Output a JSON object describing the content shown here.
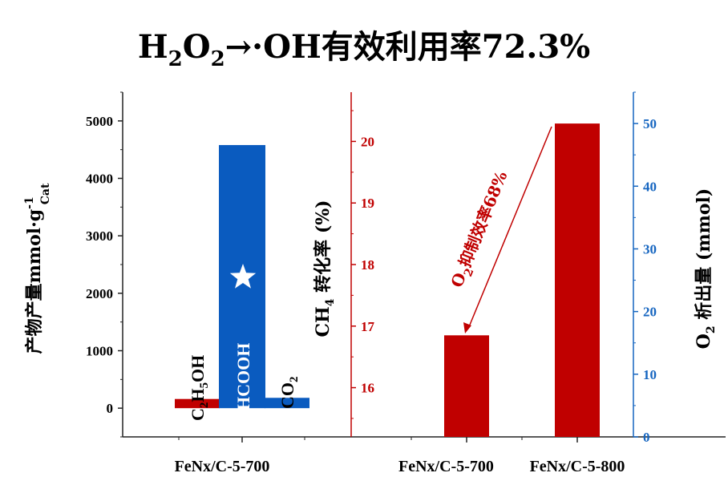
{
  "title": {
    "prefix": "H",
    "sub1": "2",
    "mid": "O",
    "sub2": "2",
    "suffix": "→·OH有效利用率72.3%",
    "color": "#1565c0"
  },
  "colors": {
    "blue": "#0a5bbf",
    "red": "#c00000",
    "axis_left": "#222222",
    "axis_mid": "#c00000",
    "axis_right": "#1565c0"
  },
  "chart_data": [
    {
      "type": "bar",
      "categories": [
        "FeNx/C-5-700"
      ],
      "series": [
        {
          "name": "C2H5OH",
          "label_parts": [
            "C",
            "2",
            "H",
            "5",
            "OH"
          ],
          "values": [
            160
          ]
        },
        {
          "name": "HCOOH",
          "label_parts": [
            "HCOOH"
          ],
          "values": [
            4580
          ]
        },
        {
          "name": "CO2",
          "label_parts": [
            "CO",
            "2"
          ],
          "values": [
            180
          ]
        }
      ],
      "ylabel_parts": [
        "产物产量mmol·g",
        "-1",
        "Cat"
      ],
      "yticks": [
        0,
        1000,
        2000,
        3000,
        4000,
        5000
      ],
      "ylim": [
        -500,
        5500
      ],
      "star_on": "HCOOH"
    },
    {
      "type": "bar",
      "categories": [
        "FeNx/C-5-700",
        "FeNx/C-5-800"
      ],
      "series": [
        {
          "name": "CH4 转化率",
          "axis": "left",
          "values": [
            16.85,
            null
          ]
        },
        {
          "name": "O2 析出量",
          "axis": "right",
          "values": [
            null,
            50
          ]
        }
      ],
      "ylabel_left_parts": [
        "CH",
        "4",
        " 转化率 (%)"
      ],
      "yticks_left": [
        16,
        17,
        18,
        19,
        20
      ],
      "ylim_left": [
        15.2,
        20.8
      ],
      "ylabel_right_parts": [
        "O",
        "2",
        " 析出量 (mmol)"
      ],
      "yticks_right": [
        0,
        10,
        20,
        30,
        40,
        50
      ],
      "ylim_right": [
        0,
        55
      ],
      "annotation_parts": [
        "O",
        "2",
        "抑制效率68%"
      ]
    }
  ]
}
